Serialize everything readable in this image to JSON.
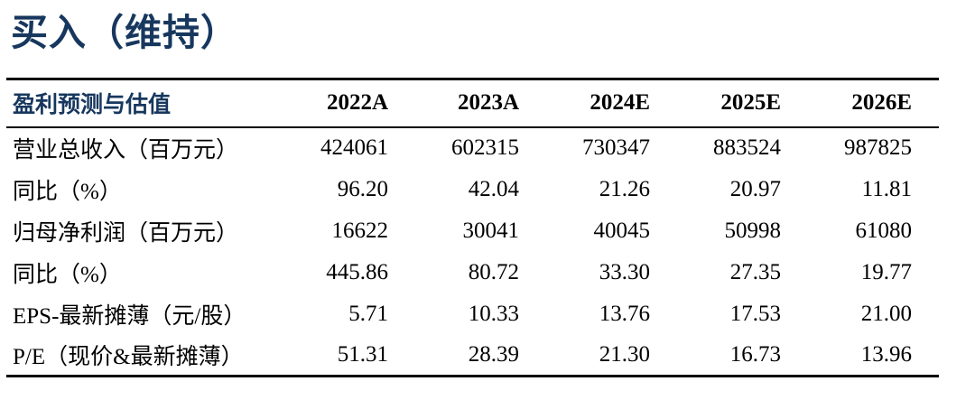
{
  "title": "买入（维持）",
  "colors": {
    "accent_blue": "#17375e",
    "text": "#000000",
    "rule": "#000000",
    "background": "#ffffff"
  },
  "table": {
    "header": {
      "label": "盈利预测与估值",
      "years": [
        "2022A",
        "2023A",
        "2024E",
        "2025E",
        "2026E"
      ]
    },
    "rows": [
      {
        "label": "营业总收入（百万元）",
        "values": [
          "424061",
          "602315",
          "730347",
          "883524",
          "987825"
        ]
      },
      {
        "label": "同比（%）",
        "values": [
          "96.20",
          "42.04",
          "21.26",
          "20.97",
          "11.81"
        ]
      },
      {
        "label": "归母净利润（百万元）",
        "values": [
          "16622",
          "30041",
          "40045",
          "50998",
          "61080"
        ]
      },
      {
        "label": "同比（%）",
        "values": [
          "445.86",
          "80.72",
          "33.30",
          "27.35",
          "19.77"
        ]
      },
      {
        "label": "EPS-最新摊薄（元/股）",
        "values": [
          "5.71",
          "10.33",
          "13.76",
          "17.53",
          "21.00"
        ]
      },
      {
        "label": "P/E（现价&最新摊薄）",
        "values": [
          "51.31",
          "28.39",
          "21.30",
          "16.73",
          "13.96"
        ]
      }
    ]
  }
}
